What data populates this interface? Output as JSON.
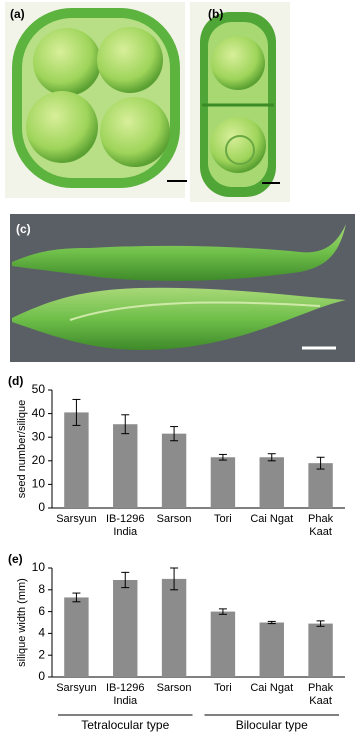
{
  "panels": [
    "(a)",
    "(b)",
    "(c)"
  ],
  "chart_data": [
    {
      "type": "bar",
      "label": "(d)",
      "ylabel": "seed number/silique",
      "categories": [
        "Sarsyun",
        "IB-1296\nIndia",
        "Sarson",
        "Tori",
        "Cai Ngat",
        "Phak\nKaat"
      ],
      "values": [
        40.5,
        35.5,
        31.5,
        21.5,
        21.5,
        19
      ],
      "errors": [
        5.5,
        4,
        3,
        1.2,
        1.5,
        2.5
      ],
      "color": "#8c8c8c",
      "ylim": [
        0,
        50
      ],
      "yticks": [
        0,
        10,
        20,
        30,
        40,
        50
      ],
      "grid": false
    },
    {
      "type": "bar",
      "label": "(e)",
      "ylabel": "silique width (mm)",
      "categories": [
        "Sarsyun",
        "IB-1296\nIndia",
        "Sarson",
        "Tori",
        "Cai Ngat",
        "Phak\nKaat"
      ],
      "values": [
        7.3,
        8.9,
        9.0,
        6.0,
        5.0,
        4.9
      ],
      "errors": [
        0.4,
        0.7,
        1.0,
        0.25,
        0.1,
        0.25
      ],
      "color": "#8c8c8c",
      "ylim": [
        0,
        10
      ],
      "yticks": [
        0,
        2,
        4,
        6,
        8,
        10
      ],
      "grid": false,
      "groups": [
        "Tetralocular type",
        "Bilocular type"
      ]
    }
  ]
}
